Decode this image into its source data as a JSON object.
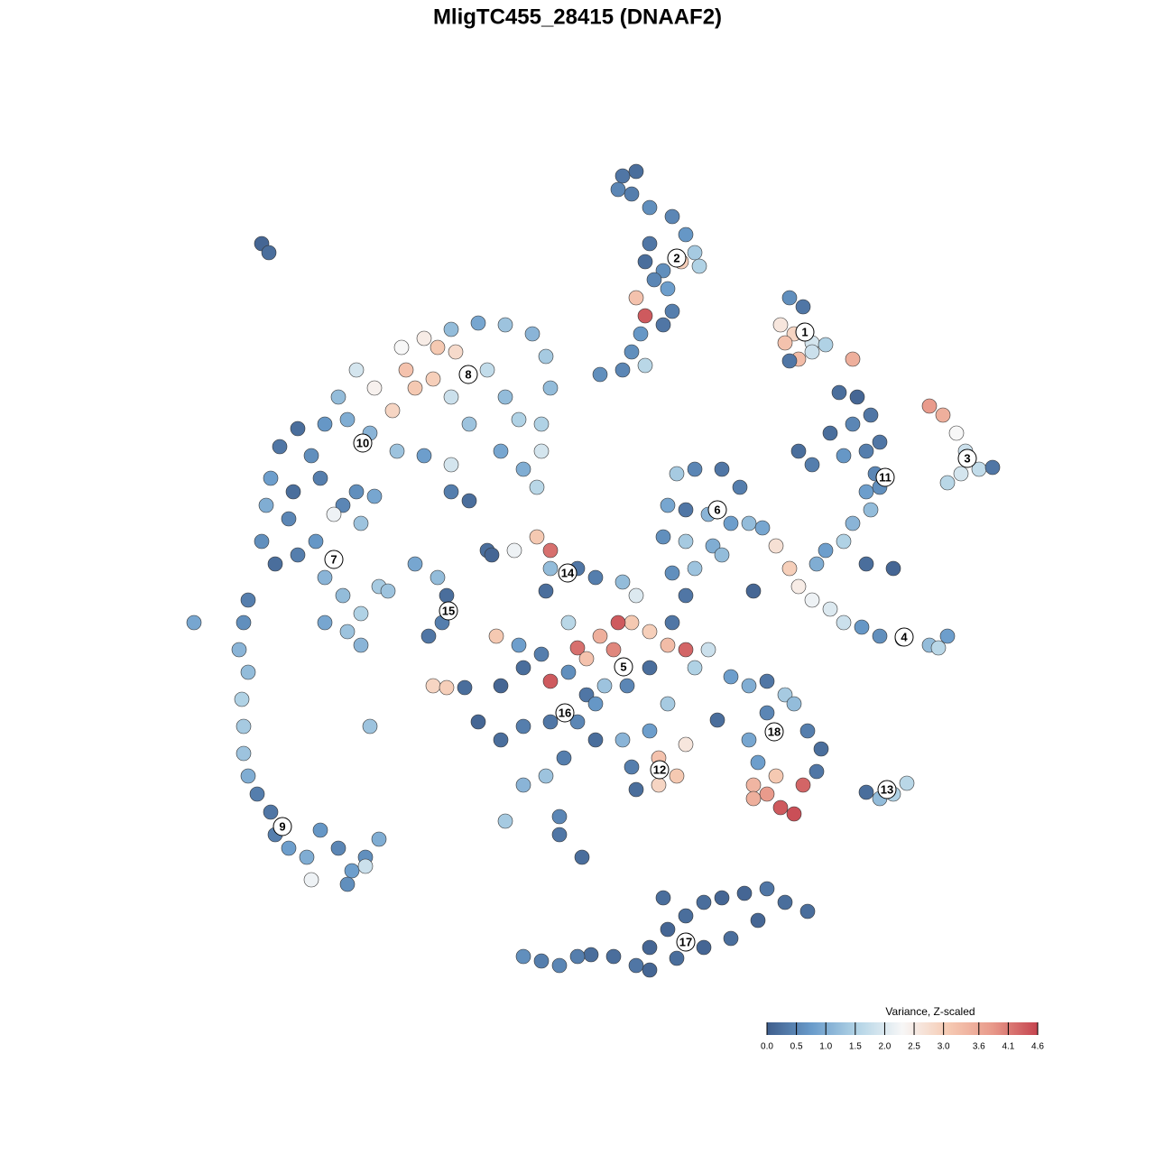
{
  "chart_data": {
    "type": "scatter",
    "title": "MligTC455_28415 (DNAAF2)",
    "xlim": [
      0,
      1280
    ],
    "ylim": [
      1280,
      0
    ],
    "colors": [
      "#3f5e8c",
      "#6a9ccb",
      "#b3d4e6",
      "#f7f7f7",
      "#f6cbb4",
      "#e8998a",
      "#c5444f"
    ],
    "colorbar": {
      "title": "Variance, Z-scaled",
      "lim": [
        0,
        4.6
      ],
      "ticks": [
        {
          "value": 0,
          "label": "0.0"
        },
        0.5,
        {
          "value": 1,
          "label": "1.0"
        },
        1.5,
        {
          "value": 2,
          "label": "2.0"
        },
        2.5,
        {
          "value": 3,
          "label": "3.0"
        },
        3.6,
        4.1,
        4.6
      ]
    },
    "points": [
      [
        690,
        195,
        0.3
      ],
      [
        705,
        190,
        0.2
      ],
      [
        685,
        210,
        0.5
      ],
      [
        700,
        215,
        0.4
      ],
      [
        720,
        230,
        0.6
      ],
      [
        745,
        240,
        0.5
      ],
      [
        760,
        260,
        0.7
      ],
      [
        770,
        280,
        1.4
      ],
      [
        755,
        290,
        3.0
      ],
      [
        735,
        300,
        0.6
      ],
      [
        720,
        270,
        0.3
      ],
      [
        715,
        290,
        0.2
      ],
      [
        725,
        310,
        0.5
      ],
      [
        740,
        320,
        0.8
      ],
      [
        705,
        330,
        3.2
      ],
      [
        745,
        345,
        0.4
      ],
      [
        715,
        350,
        4.4
      ],
      [
        735,
        360,
        0.3
      ],
      [
        710,
        370,
        0.7
      ],
      [
        700,
        390,
        0.6
      ],
      [
        715,
        405,
        1.6
      ],
      [
        690,
        410,
        0.5
      ],
      [
        665,
        415,
        0.6
      ],
      [
        775,
        295,
        1.5
      ],
      [
        875,
        330,
        0.6
      ],
      [
        890,
        340,
        0.3
      ],
      [
        865,
        360,
        2.6
      ],
      [
        880,
        370,
        2.9
      ],
      [
        900,
        380,
        1.9
      ],
      [
        915,
        382,
        1.5
      ],
      [
        870,
        380,
        3.2
      ],
      [
        885,
        398,
        3.3
      ],
      [
        875,
        400,
        0.3
      ],
      [
        900,
        390,
        1.8
      ],
      [
        945,
        398,
        3.5
      ],
      [
        930,
        435,
        0.2
      ],
      [
        950,
        440,
        0.1
      ],
      [
        965,
        460,
        0.3
      ],
      [
        945,
        470,
        0.5
      ],
      [
        920,
        480,
        0.2
      ],
      [
        885,
        500,
        0.2
      ],
      [
        900,
        515,
        0.4
      ],
      [
        935,
        505,
        0.7
      ],
      [
        960,
        500,
        0.4
      ],
      [
        975,
        490,
        0.3
      ],
      [
        970,
        525,
        0.5
      ],
      [
        960,
        545,
        0.8
      ],
      [
        965,
        565,
        1.2
      ],
      [
        945,
        580,
        1.1
      ],
      [
        935,
        600,
        1.5
      ],
      [
        915,
        610,
        0.8
      ],
      [
        905,
        625,
        1.0
      ],
      [
        960,
        625,
        0.2
      ],
      [
        990,
        630,
        0.1
      ],
      [
        975,
        540,
        0.6
      ],
      [
        1030,
        450,
        3.8
      ],
      [
        1045,
        460,
        3.5
      ],
      [
        1060,
        480,
        2.3
      ],
      [
        1070,
        500,
        1.8
      ],
      [
        1085,
        520,
        1.7
      ],
      [
        1100,
        518,
        0.3
      ],
      [
        1050,
        535,
        1.6
      ],
      [
        1065,
        525,
        1.9
      ],
      [
        860,
        605,
        2.7
      ],
      [
        875,
        630,
        3.0
      ],
      [
        885,
        650,
        2.5
      ],
      [
        900,
        665,
        2.2
      ],
      [
        920,
        675,
        2.0
      ],
      [
        935,
        690,
        1.8
      ],
      [
        955,
        695,
        0.7
      ],
      [
        975,
        705,
        0.6
      ],
      [
        1000,
        708,
        0.4
      ],
      [
        1030,
        715,
        1.2
      ],
      [
        1050,
        705,
        0.8
      ],
      [
        1040,
        718,
        1.6
      ],
      [
        750,
        525,
        1.4
      ],
      [
        770,
        520,
        0.5
      ],
      [
        800,
        520,
        0.3
      ],
      [
        820,
        540,
        0.4
      ],
      [
        740,
        560,
        0.9
      ],
      [
        760,
        565,
        0.3
      ],
      [
        785,
        570,
        1.1
      ],
      [
        810,
        580,
        0.8
      ],
      [
        830,
        580,
        1.2
      ],
      [
        845,
        585,
        0.9
      ],
      [
        735,
        595,
        0.6
      ],
      [
        760,
        600,
        1.4
      ],
      [
        790,
        605,
        1.0
      ],
      [
        770,
        630,
        1.3
      ],
      [
        745,
        635,
        0.6
      ],
      [
        760,
        660,
        0.3
      ],
      [
        800,
        615,
        1.2
      ],
      [
        445,
        385,
        2.3
      ],
      [
        470,
        375,
        2.5
      ],
      [
        500,
        365,
        1.2
      ],
      [
        530,
        358,
        0.9
      ],
      [
        560,
        360,
        1.3
      ],
      [
        590,
        370,
        1.1
      ],
      [
        605,
        395,
        1.4
      ],
      [
        610,
        430,
        1.2
      ],
      [
        600,
        470,
        1.5
      ],
      [
        600,
        500,
        1.9
      ],
      [
        595,
        540,
        1.6
      ],
      [
        580,
        520,
        1.0
      ],
      [
        555,
        500,
        0.9
      ],
      [
        520,
        470,
        1.3
      ],
      [
        500,
        440,
        1.8
      ],
      [
        480,
        420,
        3.0
      ],
      [
        460,
        430,
        3.1
      ],
      [
        450,
        410,
        3.2
      ],
      [
        485,
        385,
        3.1
      ],
      [
        505,
        390,
        2.8
      ],
      [
        540,
        410,
        1.7
      ],
      [
        560,
        440,
        1.2
      ],
      [
        575,
        465,
        1.5
      ],
      [
        435,
        455,
        2.9
      ],
      [
        415,
        430,
        2.4
      ],
      [
        395,
        410,
        1.9
      ],
      [
        375,
        440,
        1.2
      ],
      [
        360,
        470,
        0.7
      ],
      [
        385,
        465,
        1.0
      ],
      [
        410,
        480,
        1.1
      ],
      [
        440,
        500,
        1.3
      ],
      [
        470,
        505,
        0.8
      ],
      [
        500,
        515,
        1.9
      ],
      [
        330,
        475,
        0.2
      ],
      [
        310,
        495,
        0.3
      ],
      [
        345,
        505,
        0.6
      ],
      [
        300,
        530,
        0.8
      ],
      [
        325,
        545,
        0.2
      ],
      [
        355,
        530,
        0.4
      ],
      [
        295,
        560,
        1.0
      ],
      [
        320,
        575,
        0.5
      ],
      [
        290,
        600,
        0.6
      ],
      [
        305,
        625,
        0.2
      ],
      [
        330,
        615,
        0.4
      ],
      [
        350,
        600,
        0.7
      ],
      [
        380,
        560,
        0.5
      ],
      [
        400,
        580,
        1.3
      ],
      [
        395,
        545,
        0.6
      ],
      [
        415,
        550,
        0.9
      ],
      [
        360,
        640,
        1.1
      ],
      [
        380,
        660,
        1.2
      ],
      [
        400,
        680,
        1.5
      ],
      [
        420,
        650,
        1.4
      ],
      [
        385,
        700,
        1.3
      ],
      [
        400,
        715,
        1.1
      ],
      [
        360,
        690,
        0.9
      ],
      [
        430,
        655,
        1.3
      ],
      [
        500,
        545,
        0.4
      ],
      [
        520,
        555,
        0.2
      ],
      [
        370,
        570,
        2.2
      ],
      [
        275,
        665,
        0.4
      ],
      [
        270,
        690,
        0.6
      ],
      [
        265,
        720,
        1.1
      ],
      [
        275,
        745,
        1.2
      ],
      [
        268,
        775,
        1.5
      ],
      [
        270,
        805,
        1.4
      ],
      [
        270,
        835,
        1.3
      ],
      [
        275,
        860,
        1.0
      ],
      [
        285,
        880,
        0.4
      ],
      [
        300,
        900,
        0.3
      ],
      [
        305,
        925,
        0.4
      ],
      [
        320,
        940,
        0.8
      ],
      [
        340,
        950,
        1.0
      ],
      [
        355,
        920,
        0.7
      ],
      [
        375,
        940,
        0.5
      ],
      [
        345,
        975,
        2.2
      ],
      [
        390,
        965,
        0.8
      ],
      [
        405,
        950,
        0.6
      ],
      [
        420,
        930,
        1.0
      ],
      [
        385,
        980,
        0.6
      ],
      [
        405,
        960,
        1.8
      ],
      [
        215,
        690,
        0.9
      ],
      [
        290,
        270,
        0.1
      ],
      [
        298,
        280,
        0.2
      ],
      [
        410,
        805,
        1.3
      ],
      [
        460,
        625,
        0.9
      ],
      [
        485,
        640,
        1.2
      ],
      [
        495,
        660,
        0.2
      ],
      [
        490,
        690,
        0.4
      ],
      [
        475,
        705,
        0.3
      ],
      [
        540,
        610,
        0.2
      ],
      [
        570,
        610,
        2.2
      ],
      [
        595,
        595,
        3.1
      ],
      [
        610,
        610,
        4.2
      ],
      [
        610,
        630,
        1.2
      ],
      [
        605,
        655,
        0.2
      ],
      [
        640,
        630,
        0.3
      ],
      [
        660,
        640,
        0.4
      ],
      [
        690,
        645,
        1.2
      ],
      [
        705,
        660,
        2.0
      ],
      [
        700,
        690,
        3.1
      ],
      [
        685,
        690,
        4.4
      ],
      [
        665,
        705,
        3.5
      ],
      [
        640,
        718,
        4.2
      ],
      [
        650,
        730,
        3.2
      ],
      [
        680,
        720,
        4.0
      ],
      [
        720,
        700,
        3.0
      ],
      [
        740,
        715,
        3.3
      ],
      [
        760,
        720,
        4.3
      ],
      [
        785,
        720,
        1.8
      ],
      [
        770,
        740,
        1.5
      ],
      [
        745,
        690,
        0.3
      ],
      [
        720,
        740,
        0.2
      ],
      [
        695,
        760,
        0.5
      ],
      [
        670,
        760,
        1.3
      ],
      [
        650,
        770,
        0.3
      ],
      [
        630,
        745,
        0.6
      ],
      [
        610,
        755,
        4.4
      ],
      [
        600,
        725,
        0.4
      ],
      [
        580,
        740,
        0.2
      ],
      [
        555,
        760,
        0.1
      ],
      [
        530,
        800,
        0.1
      ],
      [
        555,
        820,
        0.2
      ],
      [
        580,
        805,
        0.4
      ],
      [
        610,
        800,
        0.3
      ],
      [
        640,
        800,
        0.5
      ],
      [
        660,
        820,
        0.2
      ],
      [
        690,
        820,
        1.1
      ],
      [
        720,
        810,
        0.8
      ],
      [
        700,
        850,
        0.4
      ],
      [
        705,
        875,
        0.2
      ],
      [
        730,
        840,
        3.2
      ],
      [
        750,
        860,
        3.1
      ],
      [
        730,
        870,
        2.9
      ],
      [
        760,
        825,
        2.6
      ],
      [
        740,
        780,
        1.4
      ],
      [
        660,
        780,
        0.7
      ],
      [
        625,
        840,
        0.4
      ],
      [
        605,
        860,
        1.3
      ],
      [
        580,
        870,
        1.1
      ],
      [
        560,
        910,
        1.4
      ],
      [
        620,
        905,
        0.5
      ],
      [
        620,
        925,
        0.3
      ],
      [
        645,
        950,
        0.2
      ],
      [
        550,
        705,
        3.1
      ],
      [
        480,
        760,
        2.9
      ],
      [
        495,
        762,
        3.0
      ],
      [
        515,
        762,
        0.2
      ],
      [
        630,
        690,
        1.6
      ],
      [
        575,
        715,
        0.8
      ],
      [
        795,
        798,
        0.2
      ],
      [
        835,
        655,
        0.1
      ],
      [
        545,
        615,
        0.1
      ],
      [
        810,
        750,
        0.8
      ],
      [
        830,
        760,
        1.0
      ],
      [
        850,
        755,
        0.3
      ],
      [
        870,
        770,
        1.4
      ],
      [
        880,
        780,
        1.2
      ],
      [
        850,
        790,
        0.5
      ],
      [
        860,
        810,
        0.6
      ],
      [
        830,
        820,
        0.9
      ],
      [
        895,
        810,
        0.4
      ],
      [
        910,
        830,
        0.2
      ],
      [
        905,
        855,
        0.3
      ],
      [
        840,
        845,
        0.8
      ],
      [
        835,
        870,
        3.4
      ],
      [
        850,
        880,
        3.8
      ],
      [
        865,
        895,
        4.4
      ],
      [
        880,
        902,
        4.5
      ],
      [
        860,
        860,
        3.1
      ],
      [
        890,
        870,
        4.3
      ],
      [
        835,
        885,
        3.5
      ],
      [
        960,
        878,
        0.2
      ],
      [
        975,
        885,
        1.2
      ],
      [
        990,
        880,
        1.5
      ],
      [
        1005,
        868,
        1.6
      ],
      [
        580,
        1060,
        0.6
      ],
      [
        600,
        1065,
        0.4
      ],
      [
        620,
        1070,
        0.5
      ],
      [
        655,
        1058,
        0.2
      ],
      [
        680,
        1060,
        0.2
      ],
      [
        705,
        1070,
        0.3
      ],
      [
        720,
        1050,
        0.1
      ],
      [
        740,
        1030,
        0.1
      ],
      [
        760,
        1015,
        0.2
      ],
      [
        780,
        1000,
        0.2
      ],
      [
        800,
        995,
        0.1
      ],
      [
        825,
        990,
        0.1
      ],
      [
        850,
        985,
        0.3
      ],
      [
        870,
        1000,
        0.2
      ],
      [
        895,
        1010,
        0.2
      ],
      [
        840,
        1020,
        0.1
      ],
      [
        810,
        1040,
        0.2
      ],
      [
        780,
        1050,
        0.1
      ],
      [
        750,
        1062,
        0.2
      ],
      [
        735,
        995,
        0.2
      ],
      [
        720,
        1075,
        0.1
      ],
      [
        640,
        1060,
        0.4
      ]
    ],
    "clusters": [
      {
        "label": "1",
        "x": 892,
        "y": 368
      },
      {
        "label": "2",
        "x": 750,
        "y": 286
      },
      {
        "label": "3",
        "x": 1072,
        "y": 508
      },
      {
        "label": "4",
        "x": 1002,
        "y": 706
      },
      {
        "label": "5",
        "x": 691,
        "y": 739
      },
      {
        "label": "6",
        "x": 795,
        "y": 565
      },
      {
        "label": "7",
        "x": 370,
        "y": 620
      },
      {
        "label": "8",
        "x": 519,
        "y": 415
      },
      {
        "label": "9",
        "x": 313,
        "y": 916
      },
      {
        "label": "10",
        "x": 402,
        "y": 491
      },
      {
        "label": "11",
        "x": 981,
        "y": 529
      },
      {
        "label": "12",
        "x": 731,
        "y": 853
      },
      {
        "label": "13",
        "x": 983,
        "y": 875
      },
      {
        "label": "14",
        "x": 629,
        "y": 635
      },
      {
        "label": "15",
        "x": 497,
        "y": 677
      },
      {
        "label": "16",
        "x": 626,
        "y": 790
      },
      {
        "label": "17",
        "x": 760,
        "y": 1044
      },
      {
        "label": "18",
        "x": 858,
        "y": 811
      }
    ]
  }
}
